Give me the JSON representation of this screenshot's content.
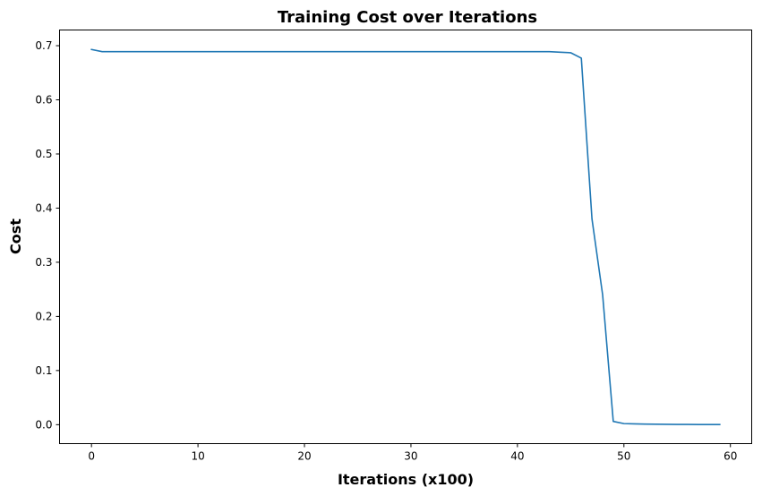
{
  "chart_data": {
    "type": "line",
    "title": "Training Cost over Iterations",
    "xlabel": "Iterations (x100)",
    "ylabel": "Cost",
    "xlim": [
      -3,
      62
    ],
    "ylim": [
      -0.035,
      0.729
    ],
    "xticks": [
      0,
      10,
      20,
      30,
      40,
      50,
      60
    ],
    "yticks": [
      0.0,
      0.1,
      0.2,
      0.3,
      0.4,
      0.5,
      0.6,
      0.7
    ],
    "grid": false,
    "series": [
      {
        "color": "#1f77b4",
        "x": [
          0,
          1,
          2,
          3,
          4,
          5,
          6,
          7,
          8,
          9,
          10,
          11,
          12,
          13,
          14,
          15,
          16,
          17,
          18,
          19,
          20,
          21,
          22,
          23,
          24,
          25,
          26,
          27,
          28,
          29,
          30,
          31,
          32,
          33,
          34,
          35,
          36,
          37,
          38,
          39,
          40,
          41,
          42,
          43,
          44,
          45,
          46,
          47,
          48,
          49,
          50,
          51,
          52,
          53,
          54,
          55,
          56,
          57,
          58,
          59
        ],
        "y": [
          0.693,
          0.689,
          0.689,
          0.689,
          0.689,
          0.689,
          0.689,
          0.689,
          0.689,
          0.689,
          0.689,
          0.689,
          0.689,
          0.689,
          0.689,
          0.689,
          0.689,
          0.689,
          0.689,
          0.689,
          0.689,
          0.689,
          0.689,
          0.689,
          0.689,
          0.689,
          0.689,
          0.689,
          0.689,
          0.689,
          0.689,
          0.689,
          0.689,
          0.689,
          0.689,
          0.689,
          0.689,
          0.689,
          0.689,
          0.689,
          0.689,
          0.689,
          0.689,
          0.689,
          0.688,
          0.687,
          0.677,
          0.38,
          0.24,
          0.006,
          0.002,
          0.0015,
          0.001,
          0.0008,
          0.0006,
          0.0005,
          0.0004,
          0.0003,
          0.0003,
          0.0003
        ]
      }
    ]
  }
}
